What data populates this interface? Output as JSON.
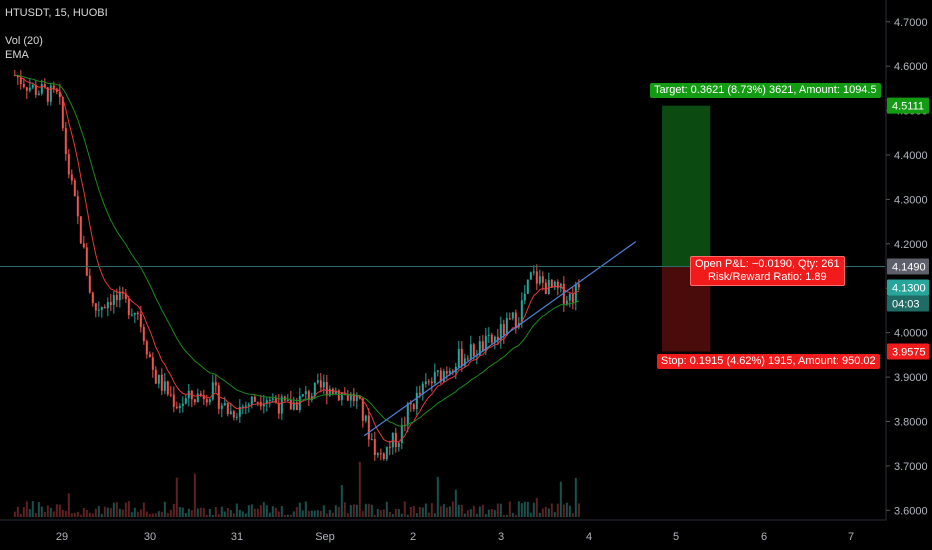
{
  "symbol": {
    "title": "HTUSDT, 15, HUOBI",
    "indicator_volume": "Vol (20)",
    "indicator_ema": "EMA"
  },
  "colors": {
    "background": "#000000",
    "candle_up": "#26a69a",
    "candle_down": "#ef5350",
    "ema_fast": "#e53935",
    "ema_slow": "#1b8a1b",
    "trendline": "#4f7fd9",
    "target_zone": "#0b4a10",
    "stop_zone": "#4a0b0b",
    "target_label": "#139b13",
    "stop_label": "#f21b1b",
    "current_price": "#26a69a",
    "grey_price": "#5d606b"
  },
  "chart_data": {
    "type": "candlestick",
    "title": "HTUSDT, 15, HUOBI",
    "x_axis_ticks": [
      "29",
      "30",
      "31",
      "Sep",
      "2",
      "3",
      "4",
      "5",
      "6",
      "7"
    ],
    "y_axis_ticks": [
      "4.7000",
      "4.6000",
      "4.5000",
      "4.4000",
      "4.3000",
      "4.2000",
      "4.1000",
      "4.0000",
      "3.9000",
      "3.8000",
      "3.7000",
      "3.6000"
    ],
    "y_range": [
      3.585,
      4.74
    ],
    "x_range_days": [
      28.45,
      7.35
    ],
    "price_path_days": [
      28.45,
      28.65,
      28.95,
      29.05,
      29.2,
      29.35,
      29.55,
      29.85,
      30.05,
      30.3,
      30.7,
      30.9,
      31.3,
      31.55,
      31.8,
      32.0,
      32.35,
      32.6,
      32.85,
      32.95,
      33.15,
      33.5,
      33.9,
      34.2,
      34.35,
      34.55,
      34.8,
      34.9
    ],
    "price_path_values": [
      4.58,
      4.55,
      4.53,
      4.38,
      4.22,
      4.05,
      4.08,
      4.05,
      3.9,
      3.84,
      3.87,
      3.82,
      3.86,
      3.83,
      3.86,
      3.88,
      3.85,
      3.72,
      3.77,
      3.83,
      3.88,
      3.94,
      3.98,
      4.04,
      4.13,
      4.1,
      4.08,
      4.11
    ],
    "trendline": {
      "start_day": 32.45,
      "start_price": 3.768,
      "end_day": 35.55,
      "end_price": 4.205
    },
    "position": {
      "entry_price": 4.149,
      "target_price": 4.5111,
      "stop_price": 3.9575,
      "start_day": 35.85,
      "end_day": 36.4
    },
    "tags": {
      "target": "Target: 0.3621 (8.73%) 3621, Amount: 1094.5",
      "stop": "Stop: 0.1915 (4.62%) 1915, Amount: 950.02",
      "pnl_line1": "Open P&L: −0.0190, Qty: 261",
      "pnl_line2": "Risk/Reward Ratio: 1.89"
    },
    "price_labels": {
      "target": "4.5111",
      "entry": "4.1490",
      "current": "4.1300",
      "countdown": "04:03",
      "stop": "3.9575"
    },
    "current_price": 4.13,
    "grid": false,
    "legend_position": "top-left"
  }
}
